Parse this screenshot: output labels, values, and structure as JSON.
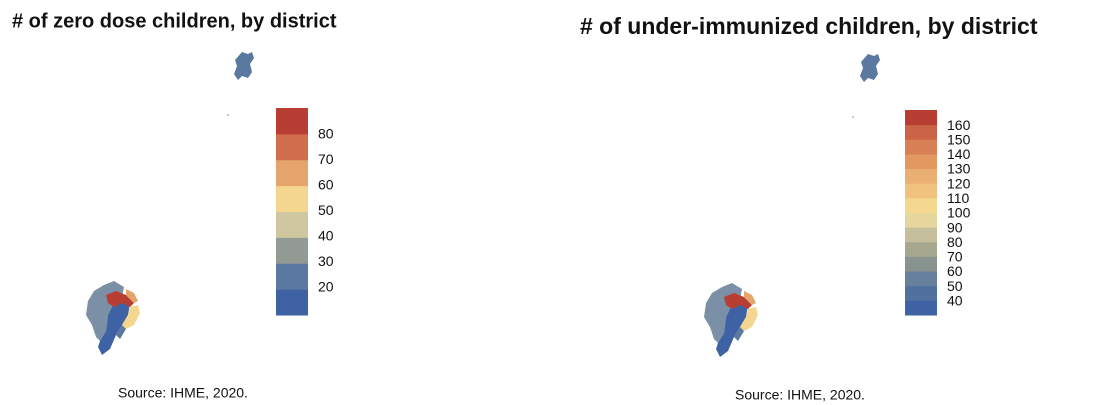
{
  "maps": [
    {
      "title": "# of zero dose children, by district",
      "legend": {
        "range": [
          9.4,
          90.6
        ],
        "ticks": [
          20,
          30,
          40,
          50,
          60,
          70,
          80
        ],
        "colors": [
          "#3e62a3",
          "#5b78a0",
          "#939a94",
          "#cfc7a0",
          "#f5d68f",
          "#e5a46c",
          "#d16c4c",
          "#b83d32"
        ]
      },
      "source": "Source: IHME, 2020."
    },
    {
      "title": "# of under-immunized children, by district",
      "legend": {
        "range": [
          31,
          171
        ],
        "ticks": [
          40,
          50,
          60,
          70,
          80,
          90,
          100,
          110,
          120,
          130,
          140,
          150,
          160
        ],
        "colors": [
          "#3e62a3",
          "#50709f",
          "#66809d",
          "#88938f",
          "#a5a78e",
          "#c4be9c",
          "#e7d69c",
          "#f5d890",
          "#f1c27e",
          "#eab073",
          "#e3985f",
          "#d97f55",
          "#cb6446",
          "#b83d32"
        ]
      },
      "source": "Source: IHME, 2020."
    }
  ]
}
